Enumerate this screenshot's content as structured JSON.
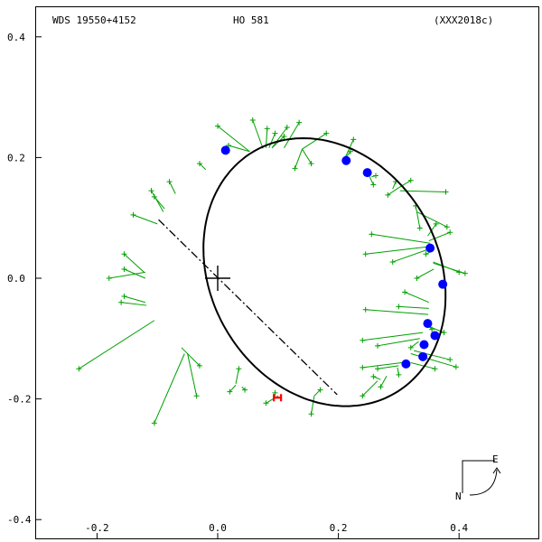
{
  "header": {
    "left": "WDS 19550+4152",
    "center": "HO  581",
    "right": "(XXX2018c)"
  },
  "compass": {
    "east_label": "E",
    "north_label": "N"
  },
  "colors": {
    "orbit": "#000000",
    "measure": "#00a000",
    "blue_point": "#0000ff",
    "red_point": "#ff0000",
    "frame": "#000000"
  },
  "chart_data": {
    "type": "scatter",
    "title": "",
    "xlabel": "",
    "ylabel": "",
    "xlim": [
      -0.36,
      0.54
    ],
    "ylim": [
      -0.4,
      0.4
    ],
    "x_ticks": [
      {
        "value": -0.2,
        "label": "-0.2"
      },
      {
        "value": 0.0,
        "label": "0.0"
      },
      {
        "value": 0.2,
        "label": "0.2"
      },
      {
        "value": 0.4,
        "label": "0.4"
      }
    ],
    "y_ticks": [
      {
        "value": 0.4,
        "label": "0.4"
      },
      {
        "value": 0.2,
        "label": "0.2"
      },
      {
        "value": 0.0,
        "label": "0.0"
      },
      {
        "value": -0.2,
        "label": "-0.2"
      },
      {
        "value": -0.4,
        "label": "-0.4"
      }
    ],
    "orbit": {
      "center": [
        0.177,
        0.01
      ],
      "semi_major": 0.232,
      "semi_minor": 0.189,
      "rotation_deg": 120
    },
    "primary": [
      0.0,
      0.0
    ],
    "line_of_nodes": [
      [
        -0.098,
        0.097
      ],
      [
        0.198,
        -0.193
      ]
    ],
    "measurements": [
      {
        "obs": [
          0.0,
          0.252
        ],
        "model": [
          0.053,
          0.21
        ]
      },
      {
        "obs": [
          0.018,
          0.22
        ],
        "model": [
          0.053,
          0.21
        ]
      },
      {
        "obs": [
          0.058,
          0.262
        ],
        "model": [
          0.075,
          0.215
        ]
      },
      {
        "obs": [
          0.082,
          0.248
        ],
        "model": [
          0.08,
          0.216
        ]
      },
      {
        "obs": [
          0.095,
          0.24
        ],
        "model": [
          0.085,
          0.216
        ]
      },
      {
        "obs": [
          0.11,
          0.235
        ],
        "model": [
          0.09,
          0.216
        ]
      },
      {
        "obs": [
          0.115,
          0.25
        ],
        "model": [
          0.09,
          0.216
        ]
      },
      {
        "obs": [
          0.135,
          0.258
        ],
        "model": [
          0.11,
          0.216
        ]
      },
      {
        "obs": [
          0.18,
          0.24
        ],
        "model": [
          0.14,
          0.214
        ]
      },
      {
        "obs": [
          0.128,
          0.182
        ],
        "model": [
          0.14,
          0.214
        ]
      },
      {
        "obs": [
          0.155,
          0.19
        ],
        "model": [
          0.14,
          0.214
        ]
      },
      {
        "obs": [
          0.22,
          0.21
        ],
        "model": [
          0.21,
          0.197
        ]
      },
      {
        "obs": [
          0.225,
          0.23
        ],
        "model": [
          0.21,
          0.197
        ]
      },
      {
        "obs": [
          0.258,
          0.155
        ],
        "model": [
          0.25,
          0.172
        ]
      },
      {
        "obs": [
          0.262,
          0.17
        ],
        "model": [
          0.255,
          0.168
        ]
      },
      {
        "obs": [
          0.295,
          0.16
        ],
        "model": [
          0.29,
          0.148
        ]
      },
      {
        "obs": [
          0.32,
          0.162
        ],
        "model": [
          0.3,
          0.15
        ]
      },
      {
        "obs": [
          0.378,
          0.143
        ],
        "model": [
          0.302,
          0.145
        ]
      },
      {
        "obs": [
          0.282,
          0.138
        ],
        "model": [
          0.3,
          0.15
        ]
      },
      {
        "obs": [
          0.335,
          0.083
        ],
        "model": [
          0.33,
          0.11
        ]
      },
      {
        "obs": [
          0.38,
          0.085
        ],
        "model": [
          0.33,
          0.11
        ]
      },
      {
        "obs": [
          0.328,
          0.12
        ],
        "model": [
          0.33,
          0.11
        ]
      },
      {
        "obs": [
          0.362,
          0.09
        ],
        "model": [
          0.348,
          0.07
        ]
      },
      {
        "obs": [
          0.385,
          0.076
        ],
        "model": [
          0.35,
          0.062
        ]
      },
      {
        "obs": [
          0.255,
          0.073
        ],
        "model": [
          0.352,
          0.058
        ]
      },
      {
        "obs": [
          0.245,
          0.04
        ],
        "model": [
          0.355,
          0.053
        ]
      },
      {
        "obs": [
          0.29,
          0.027
        ],
        "model": [
          0.355,
          0.05
        ]
      },
      {
        "obs": [
          0.345,
          0.04
        ],
        "model": [
          0.355,
          0.045
        ]
      },
      {
        "obs": [
          0.4,
          0.01
        ],
        "model": [
          0.357,
          0.027
        ]
      },
      {
        "obs": [
          0.41,
          0.008
        ],
        "model": [
          0.357,
          0.025
        ]
      },
      {
        "obs": [
          0.33,
          0.0
        ],
        "model": [
          0.358,
          0.015
        ]
      },
      {
        "obs": [
          0.31,
          -0.023
        ],
        "model": [
          0.35,
          -0.04
        ]
      },
      {
        "obs": [
          0.3,
          -0.047
        ],
        "model": [
          0.35,
          -0.05
        ]
      },
      {
        "obs": [
          0.245,
          -0.052
        ],
        "model": [
          0.349,
          -0.06
        ]
      },
      {
        "obs": [
          0.355,
          -0.085
        ],
        "model": [
          0.345,
          -0.075
        ]
      },
      {
        "obs": [
          0.375,
          -0.09
        ],
        "model": [
          0.345,
          -0.078
        ]
      },
      {
        "obs": [
          0.24,
          -0.103
        ],
        "model": [
          0.34,
          -0.09
        ]
      },
      {
        "obs": [
          0.265,
          -0.112
        ],
        "model": [
          0.335,
          -0.1
        ]
      },
      {
        "obs": [
          0.32,
          -0.115
        ],
        "model": [
          0.333,
          -0.105
        ]
      },
      {
        "obs": [
          0.385,
          -0.135
        ],
        "model": [
          0.325,
          -0.12
        ]
      },
      {
        "obs": [
          0.395,
          -0.147
        ],
        "model": [
          0.32,
          -0.125
        ]
      },
      {
        "obs": [
          0.24,
          -0.148
        ],
        "model": [
          0.305,
          -0.14
        ]
      },
      {
        "obs": [
          0.265,
          -0.15
        ],
        "model": [
          0.3,
          -0.145
        ]
      },
      {
        "obs": [
          0.3,
          -0.16
        ],
        "model": [
          0.298,
          -0.148
        ]
      },
      {
        "obs": [
          0.36,
          -0.15
        ],
        "model": [
          0.32,
          -0.14
        ]
      },
      {
        "obs": [
          0.24,
          -0.195
        ],
        "model": [
          0.265,
          -0.17
        ]
      },
      {
        "obs": [
          0.258,
          -0.163
        ],
        "model": [
          0.27,
          -0.168
        ]
      },
      {
        "obs": [
          0.27,
          -0.18
        ],
        "model": [
          0.28,
          -0.162
        ]
      },
      {
        "obs": [
          0.155,
          -0.225
        ],
        "model": [
          0.16,
          -0.195
        ]
      },
      {
        "obs": [
          0.17,
          -0.185
        ],
        "model": [
          0.16,
          -0.195
        ]
      },
      {
        "obs": [
          0.08,
          -0.207
        ],
        "model": [
          0.1,
          -0.195
        ]
      },
      {
        "obs": [
          0.095,
          -0.19
        ],
        "model": [
          0.095,
          -0.196
        ]
      },
      {
        "obs": [
          0.035,
          -0.15
        ],
        "model": [
          0.03,
          -0.175
        ]
      },
      {
        "obs": [
          0.045,
          -0.185
        ],
        "model": [
          0.04,
          -0.18
        ]
      },
      {
        "obs": [
          0.02,
          -0.188
        ],
        "model": [
          0.03,
          -0.177
        ]
      },
      {
        "obs": [
          -0.105,
          -0.24
        ],
        "model": [
          -0.055,
          -0.125
        ]
      },
      {
        "obs": [
          -0.035,
          -0.195
        ],
        "model": [
          -0.05,
          -0.125
        ]
      },
      {
        "obs": [
          -0.03,
          -0.145
        ],
        "model": [
          -0.06,
          -0.115
        ]
      },
      {
        "obs": [
          -0.23,
          -0.15
        ],
        "model": [
          -0.105,
          -0.07
        ]
      },
      {
        "obs": [
          -0.155,
          -0.03
        ],
        "model": [
          -0.12,
          -0.04
        ]
      },
      {
        "obs": [
          -0.16,
          -0.04
        ],
        "model": [
          -0.118,
          -0.045
        ]
      },
      {
        "obs": [
          -0.155,
          0.015
        ],
        "model": [
          -0.12,
          0.0
        ]
      },
      {
        "obs": [
          -0.155,
          0.04
        ],
        "model": [
          -0.122,
          0.01
        ]
      },
      {
        "obs": [
          -0.18,
          0.0
        ],
        "model": [
          -0.12,
          0.01
        ]
      },
      {
        "obs": [
          -0.14,
          0.105
        ],
        "model": [
          -0.1,
          0.09
        ]
      },
      {
        "obs": [
          -0.11,
          0.145
        ],
        "model": [
          -0.09,
          0.11
        ]
      },
      {
        "obs": [
          -0.105,
          0.135
        ],
        "model": [
          -0.088,
          0.115
        ]
      },
      {
        "obs": [
          -0.08,
          0.16
        ],
        "model": [
          -0.07,
          0.14
        ]
      },
      {
        "obs": [
          -0.03,
          0.19
        ],
        "model": [
          -0.02,
          0.18
        ]
      }
    ],
    "blue_points": [
      [
        0.013,
        0.212
      ],
      [
        0.213,
        0.195
      ],
      [
        0.248,
        0.175
      ],
      [
        0.352,
        0.05
      ],
      [
        0.373,
        -0.01
      ],
      [
        0.348,
        -0.075
      ],
      [
        0.36,
        -0.095
      ],
      [
        0.342,
        -0.11
      ],
      [
        0.34,
        -0.13
      ],
      [
        0.312,
        -0.142
      ]
    ],
    "red_points": [
      [
        0.099,
        -0.198
      ]
    ]
  }
}
